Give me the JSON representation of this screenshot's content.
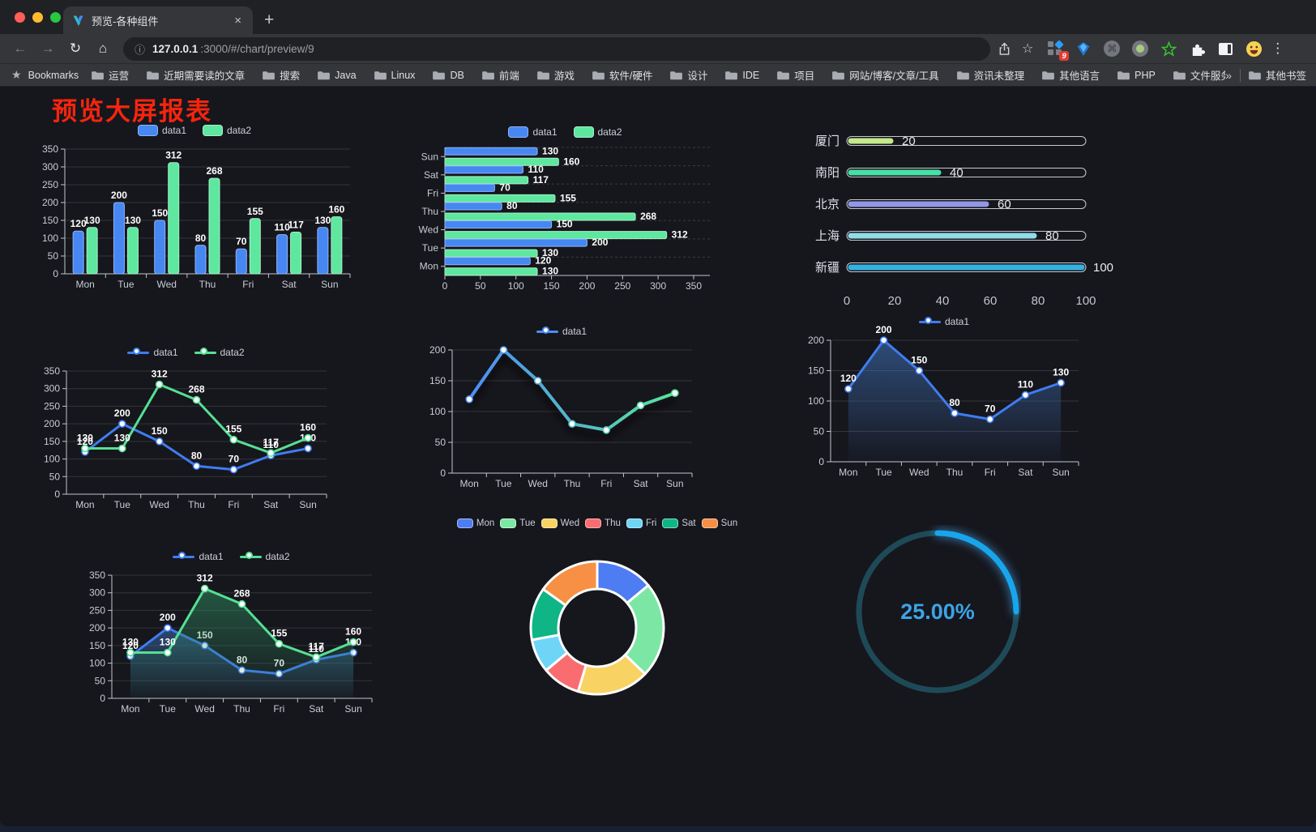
{
  "browser": {
    "traffic_lights": [
      "#ff5f57",
      "#febc2e",
      "#28c840"
    ],
    "tab": {
      "title": "预览-各种组件",
      "close": "×"
    },
    "new_tab": "+",
    "nav": {
      "back": "←",
      "forward": "→",
      "reload": "↻",
      "home": "⌂"
    },
    "url": {
      "info": "ⓘ",
      "host": "127.0.0.1",
      "path": ":3000/#/chart/preview/9"
    },
    "actions": {
      "bookmark_star": "☆",
      "extension_badge": "9",
      "menu": "⋮"
    },
    "bookmarks": {
      "star": "★",
      "label": "Bookmarks",
      "items": [
        "运营",
        "近期需要读的文章",
        "搜索",
        "Java",
        "Linux",
        "DB",
        "前端",
        "游戏",
        "软件/硬件",
        "设计",
        "IDE",
        "项目",
        "网站/博客/文章/工具",
        "资讯未整理",
        "其他语言",
        "PHP",
        "文件服务器"
      ],
      "overflow": "»",
      "other": "其他书签"
    }
  },
  "page": {
    "title": "预览大屏报表"
  },
  "chart_data": [
    {
      "type": "bar",
      "categories": [
        "Mon",
        "Tue",
        "Wed",
        "Thu",
        "Fri",
        "Sat",
        "Sun"
      ],
      "series": [
        {
          "name": "data1",
          "color": "#4687f2",
          "border": "#8fb4f8",
          "values": [
            120,
            200,
            150,
            80,
            70,
            110,
            130
          ]
        },
        {
          "name": "data2",
          "color": "#5ee79e",
          "border": "#a6f1c9",
          "values": [
            130,
            130,
            312,
            268,
            155,
            117,
            160
          ]
        }
      ],
      "ylim": [
        0,
        350
      ],
      "ytick_step": 50,
      "grid": true,
      "legend_position": "top"
    },
    {
      "type": "bar-horizontal",
      "categories_top_to_bottom": [
        "Sun",
        "Sat",
        "Fri",
        "Thu",
        "Wed",
        "Tue",
        "Mon"
      ],
      "series": [
        {
          "name": "data1",
          "color": "#4687f2",
          "border": "#8fb4f8",
          "values": [
            130,
            110,
            70,
            80,
            150,
            200,
            120
          ]
        },
        {
          "name": "data2",
          "color": "#5ee79e",
          "border": "#a6f1c9",
          "values": [
            160,
            117,
            155,
            268,
            312,
            130,
            130
          ]
        }
      ],
      "xlim": [
        0,
        350
      ],
      "xtick_step": 50,
      "legend_position": "top"
    },
    {
      "type": "progress-bars",
      "xticks": [
        0,
        20,
        40,
        60,
        80,
        100
      ],
      "bars": [
        {
          "label": "厦门",
          "value": 20,
          "color": "#c5e98b"
        },
        {
          "label": "南阳",
          "value": 40,
          "color": "#46dfa6"
        },
        {
          "label": "北京",
          "value": 60,
          "color": "#9197e6"
        },
        {
          "label": "上海",
          "value": 80,
          "color": "#8edde9"
        },
        {
          "label": "新疆",
          "value": 100,
          "color": "#34b2e3"
        }
      ]
    },
    {
      "type": "line",
      "categories": [
        "Mon",
        "Tue",
        "Wed",
        "Thu",
        "Fri",
        "Sat",
        "Sun"
      ],
      "series": [
        {
          "name": "data1",
          "color": "#3f7df0",
          "values": [
            120,
            200,
            150,
            80,
            70,
            110,
            130
          ]
        },
        {
          "name": "data2",
          "color": "#55e093",
          "values": [
            130,
            130,
            312,
            268,
            155,
            117,
            160
          ]
        }
      ],
      "ylim": [
        0,
        350
      ],
      "ytick_step": 50,
      "labels": true
    },
    {
      "type": "line",
      "categories": [
        "Mon",
        "Tue",
        "Wed",
        "Thu",
        "Fri",
        "Sat",
        "Sun"
      ],
      "series": [
        {
          "name": "data1",
          "color": "#4d8df5",
          "gradient_to": "#58e49a",
          "values": [
            120,
            200,
            150,
            80,
            70,
            110,
            130
          ]
        }
      ],
      "ylim": [
        0,
        200
      ],
      "ytick_step": 50,
      "labels": false,
      "line_width": 4,
      "shadow": true
    },
    {
      "type": "area",
      "categories": [
        "Mon",
        "Tue",
        "Wed",
        "Thu",
        "Fri",
        "Sat",
        "Sun"
      ],
      "series": [
        {
          "name": "data1",
          "color": "#3f7df0",
          "values": [
            120,
            200,
            150,
            80,
            70,
            110,
            130
          ],
          "area": {
            "from": "rgba(62,112,182,0.6)",
            "to": "rgba(62,112,182,0.03)"
          }
        }
      ],
      "ylim": [
        0,
        200
      ],
      "ytick_step": 50,
      "labels": true
    },
    {
      "type": "area",
      "categories": [
        "Mon",
        "Tue",
        "Wed",
        "Thu",
        "Fri",
        "Sat",
        "Sun"
      ],
      "series": [
        {
          "name": "data1",
          "color": "#3f7df0",
          "values": [
            120,
            200,
            150,
            80,
            70,
            110,
            130
          ],
          "area": {
            "from": "rgba(62,112,182,0.55)",
            "to": "rgba(62,112,182,0.03)"
          }
        },
        {
          "name": "data2",
          "color": "#55e093",
          "values": [
            130,
            130,
            312,
            268,
            155,
            117,
            160
          ],
          "area": {
            "from": "rgba(47,140,96,0.55)",
            "to": "rgba(47,140,96,0.03)"
          }
        }
      ],
      "ylim": [
        0,
        350
      ],
      "ytick_step": 50,
      "labels": true
    },
    {
      "type": "donut",
      "labels": [
        "Mon",
        "Tue",
        "Wed",
        "Thu",
        "Fri",
        "Sat",
        "Sun"
      ],
      "values": [
        120,
        200,
        150,
        80,
        70,
        110,
        130
      ],
      "colors": [
        "#4e7cf2",
        "#7ce7a4",
        "#f8d263",
        "#f96d70",
        "#6fd5f7",
        "#0fb584",
        "#f79044"
      ],
      "borders": [
        "#a3baf9",
        "#c0f3d6",
        "#fce8ad",
        "#fcb2b4",
        "#b5e9fb",
        "#7edec4",
        "#fbc59b"
      ],
      "border_color": "#ffffff",
      "inner_radius": 48,
      "outer_radius": 82
    },
    {
      "type": "gauge",
      "value": 25,
      "display": "25.00%",
      "color": "#17a6ee",
      "track": "#1e4a57",
      "text_color": "#3ba4e6"
    }
  ]
}
